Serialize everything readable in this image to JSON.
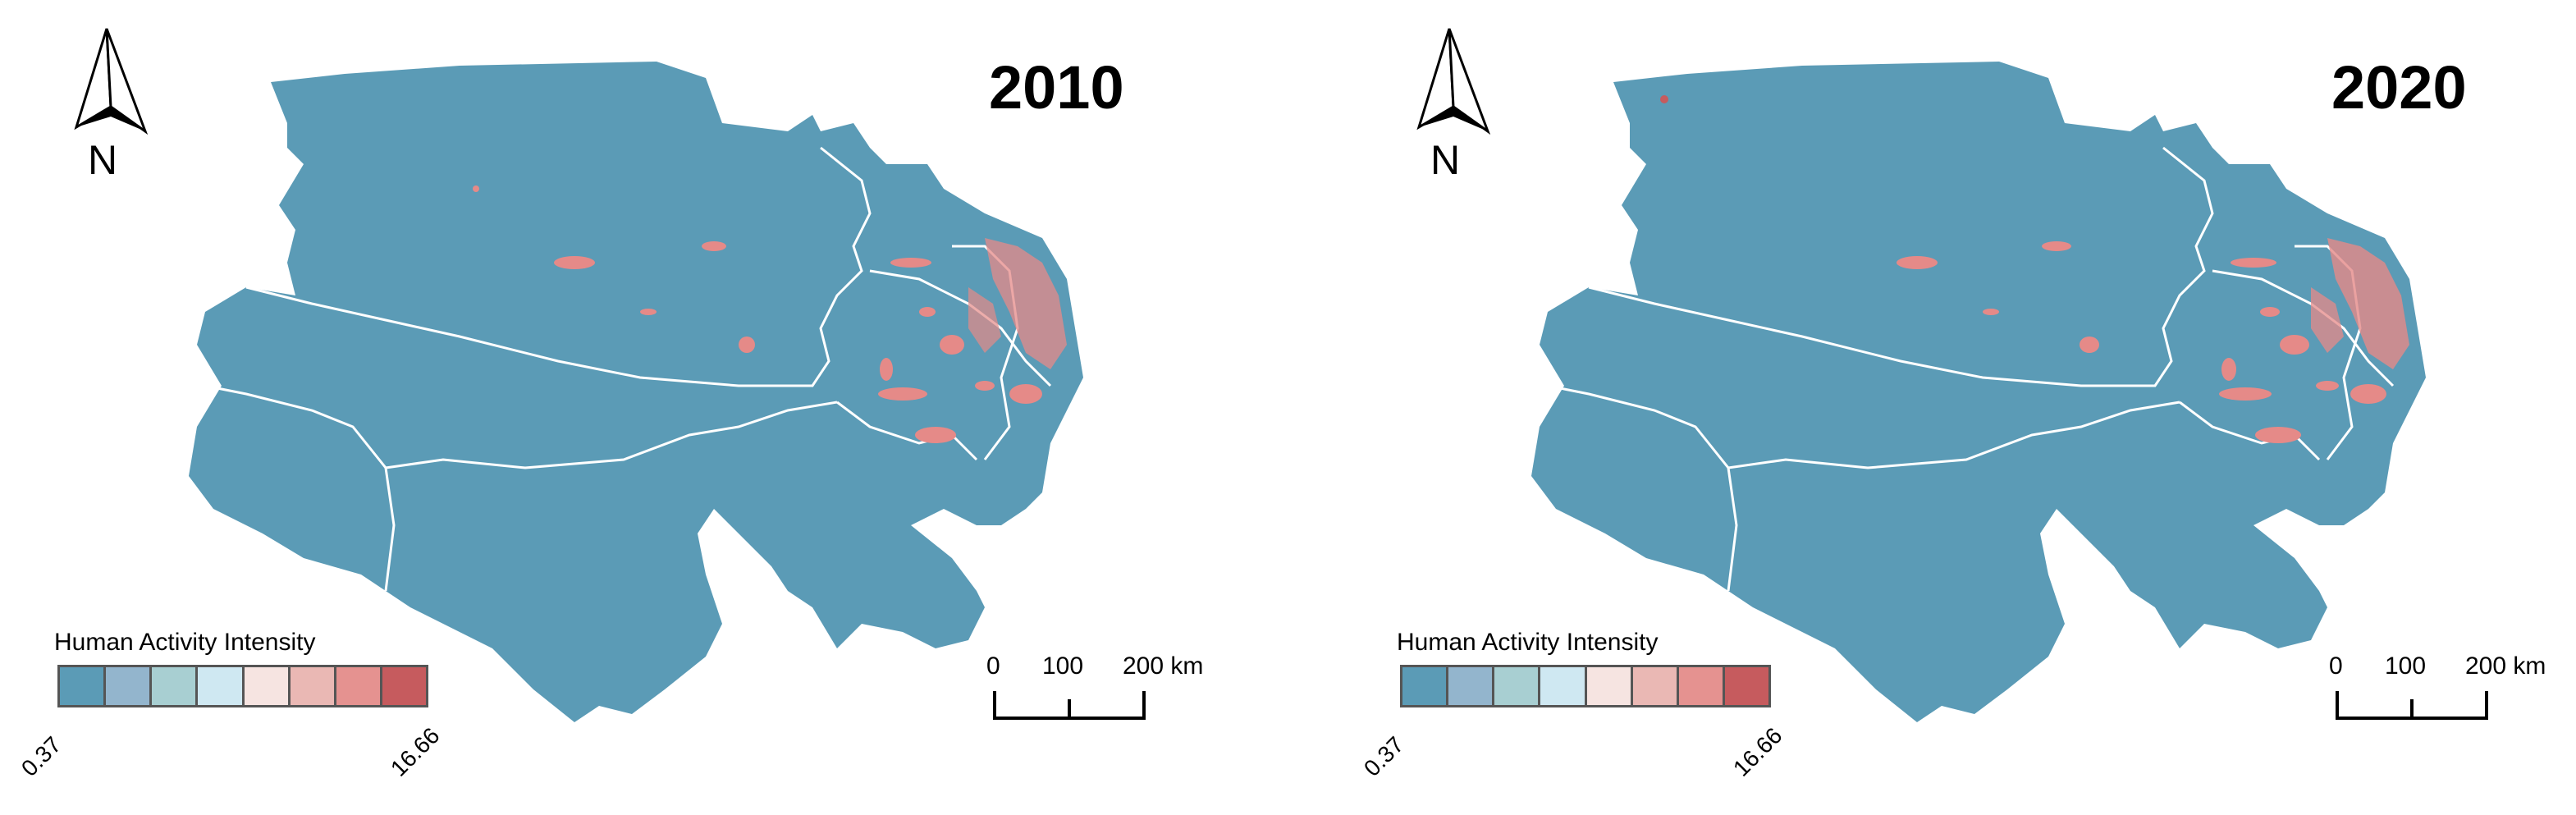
{
  "panels": [
    {
      "year": "2010",
      "north_label": "N"
    },
    {
      "year": "2020",
      "north_label": "N"
    }
  ],
  "legend": {
    "title": "Human Activity Intensity",
    "min": "0.37",
    "max": "16.66",
    "colors": [
      "#5b9bb6",
      "#93b5cd",
      "#a8cfd2",
      "#cfe8f2",
      "#f6e4e1",
      "#eab8b4",
      "#e59290",
      "#c65b5e"
    ]
  },
  "scale": {
    "ticks": [
      "0",
      "100",
      "200 km"
    ]
  },
  "map_colors": {
    "region": "#5b9bb6",
    "border": "#ffffff",
    "hotspot": "#e58a88"
  }
}
